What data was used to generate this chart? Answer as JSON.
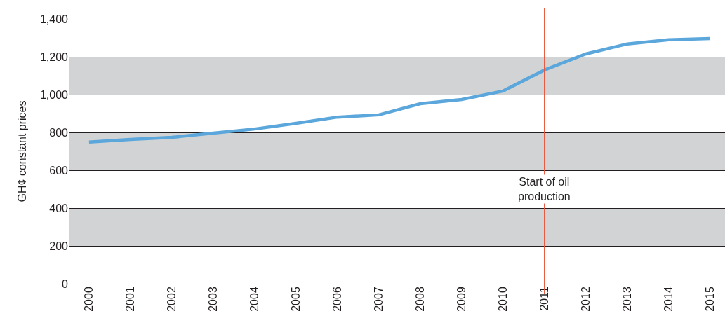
{
  "chart_data": {
    "type": "line",
    "ylabel": "GH¢ constant prices",
    "categories": [
      "2000",
      "2001",
      "2002",
      "2003",
      "2004",
      "2005",
      "2006",
      "2007",
      "2008",
      "2009",
      "2010",
      "2011",
      "2012",
      "2013",
      "2014",
      "2015"
    ],
    "series": [
      {
        "color": "#5ba7dc",
        "values": [
          749,
          763,
          774,
          796,
          818,
          848,
          881,
          893,
          952,
          974,
          1019,
          1130,
          1215,
          1268,
          1290,
          1296
        ]
      }
    ],
    "ylim": [
      0,
      1400
    ],
    "yticks": [
      0,
      200,
      400,
      600,
      800,
      {
        "value": 1000,
        "label": "1,000"
      },
      {
        "value": 1200,
        "label": "1,200"
      },
      {
        "value": 1400,
        "label": "1,400"
      }
    ],
    "bands": [
      {
        "axis": "y",
        "from": 200,
        "to": 400,
        "color": "#d1d3d4"
      },
      {
        "axis": "y",
        "from": 600,
        "to": 800,
        "color": "#d1d3d4"
      },
      {
        "axis": "y",
        "from": 1000,
        "to": 1200,
        "color": "#d1d3d4"
      }
    ],
    "ref_lines": [
      {
        "axis": "x",
        "value": "2011",
        "label": "Start of oil production",
        "color": "#e8553b"
      }
    ],
    "grid": "y",
    "marker": "none",
    "line_style": "solid"
  }
}
